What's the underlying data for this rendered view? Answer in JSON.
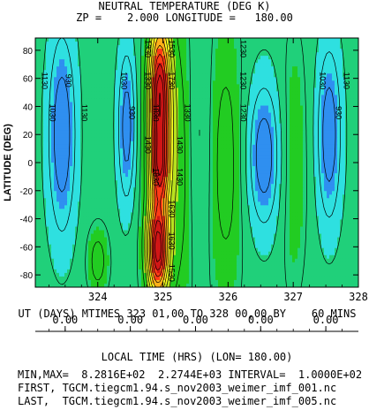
{
  "header": {
    "line1": "NEUTRAL TEMPERATURE (DEG K)",
    "line2": "ZP =    2.000 LONGITUDE =   180.00"
  },
  "chart_data": {
    "type": "heatmap",
    "subtype": "filled-contour",
    "ylabel": "LATITUDE (DEG)",
    "x_ticks": [
      324,
      325,
      326,
      327,
      328
    ],
    "x_tick_labels": [
      "324",
      "325",
      "326",
      "327",
      "328"
    ],
    "xlim": [
      323.0417,
      328.0
    ],
    "y_ticks": [
      -80,
      -60,
      -40,
      -20,
      0,
      20,
      40,
      60,
      80
    ],
    "y_tick_labels": [
      "-80",
      "-60",
      "-40",
      "-20",
      "0",
      "20",
      "40",
      "60",
      "80"
    ],
    "ylim": [
      -88.75,
      88.75
    ],
    "xlabel": "UT (DAYS) MTIMES 323 01,00 TO 328 00,00 BY    60 MINS",
    "min": 828.16,
    "max": 2274.4,
    "contour_interval": 100,
    "contour_labels": [
      "830",
      "930",
      "1030",
      "1130",
      "1230",
      "1330",
      "1430",
      "1530",
      "1630",
      "1730",
      "1830",
      "1930",
      "2030",
      "2130",
      "2230"
    ],
    "local_time_axis": {
      "title": "LOCAL TIME (HRS) (LON= 180.00)",
      "tick_labels": [
        "0.00",
        "0.00",
        "0.00",
        "0.00",
        "0.00"
      ]
    },
    "grid": false,
    "colorscale": [
      "#1236c8",
      "#2f8ff0",
      "#2ee0e0",
      "#20d07a",
      "#22cc22",
      "#b8e11e",
      "#ffff22",
      "#ffb019",
      "#ff3b16",
      "#d11616"
    ]
  },
  "footer": {
    "minmax": "MIN,MAX=  8.2816E+02  2.2744E+03 INTERVAL=  1.0000E+02",
    "first": "FIRST, TGCM.tiegcm1.94.s_nov2003_weimer_imf_001.nc",
    "last": "LAST,  TGCM.tiegcm1.94.s_nov2003_weimer_imf_005.nc"
  }
}
